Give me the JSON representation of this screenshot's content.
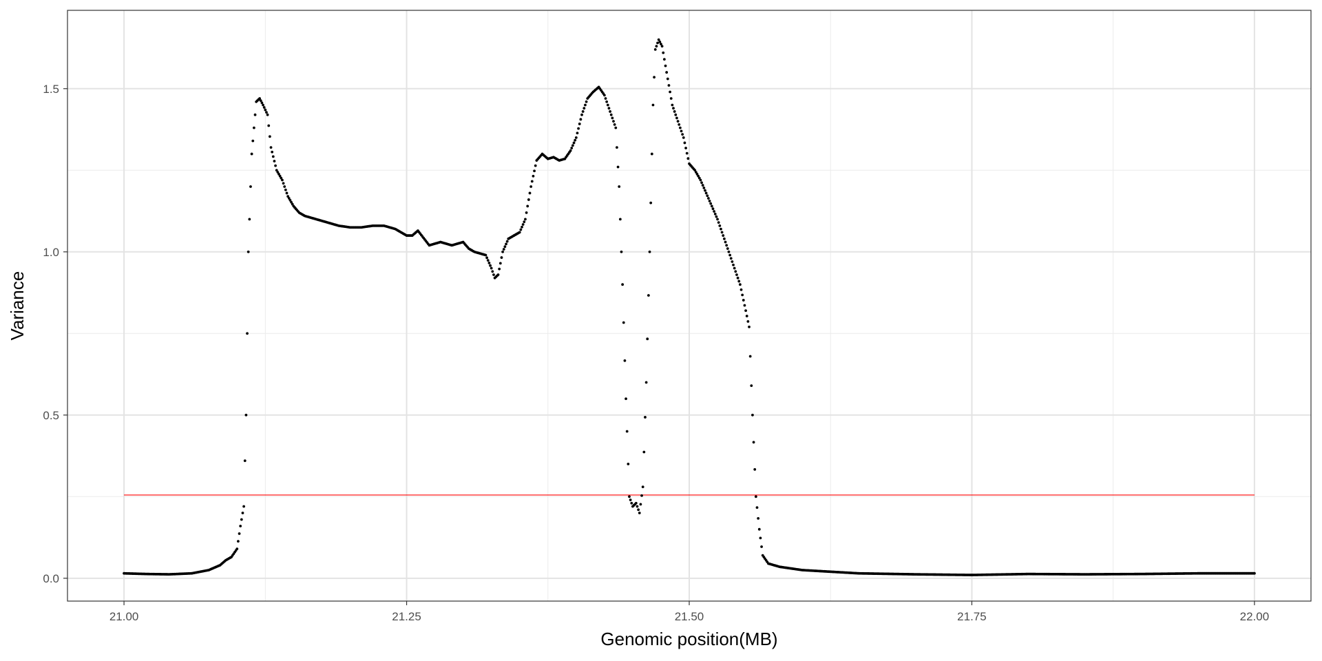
{
  "chart_data": {
    "type": "scatter",
    "xlabel": "Genomic position(MB)",
    "ylabel": "Variance",
    "xlim": [
      20.95,
      22.05
    ],
    "ylim": [
      -0.07,
      1.74
    ],
    "x_ticks": [
      21.0,
      21.25,
      21.5,
      21.75,
      22.0
    ],
    "x_tick_labels": [
      "21.00",
      "21.25",
      "21.50",
      "21.75",
      "22.00"
    ],
    "y_ticks": [
      0.0,
      0.5,
      1.0,
      1.5
    ],
    "y_tick_labels": [
      "0.0",
      "0.5",
      "1.0",
      "1.5"
    ],
    "grid": true,
    "threshold": {
      "y": 0.255,
      "x_start": 21.0,
      "x_end": 22.0,
      "color": "#ff0000"
    },
    "point_color": "#000000",
    "series": [
      {
        "points": [
          [
            21.0,
            0.015
          ],
          [
            21.02,
            0.013
          ],
          [
            21.04,
            0.012
          ],
          [
            21.06,
            0.015
          ],
          [
            21.075,
            0.025
          ],
          [
            21.085,
            0.04
          ],
          [
            21.09,
            0.055
          ],
          [
            21.095,
            0.065
          ],
          [
            21.1,
            0.09
          ],
          [
            21.103,
            0.16
          ],
          [
            21.106,
            0.22
          ],
          [
            21.108,
            0.5
          ],
          [
            21.11,
            1.0
          ],
          [
            21.113,
            1.3
          ],
          [
            21.117,
            1.46
          ],
          [
            21.12,
            1.47
          ],
          [
            21.123,
            1.45
          ],
          [
            21.127,
            1.42
          ],
          [
            21.13,
            1.32
          ],
          [
            21.135,
            1.25
          ],
          [
            21.14,
            1.22
          ],
          [
            21.145,
            1.17
          ],
          [
            21.15,
            1.14
          ],
          [
            21.155,
            1.12
          ],
          [
            21.16,
            1.11
          ],
          [
            21.17,
            1.1
          ],
          [
            21.18,
            1.09
          ],
          [
            21.19,
            1.08
          ],
          [
            21.2,
            1.075
          ],
          [
            21.21,
            1.075
          ],
          [
            21.22,
            1.08
          ],
          [
            21.23,
            1.08
          ],
          [
            21.24,
            1.07
          ],
          [
            21.25,
            1.05
          ],
          [
            21.255,
            1.05
          ],
          [
            21.26,
            1.065
          ],
          [
            21.27,
            1.02
          ],
          [
            21.28,
            1.03
          ],
          [
            21.29,
            1.02
          ],
          [
            21.3,
            1.03
          ],
          [
            21.305,
            1.01
          ],
          [
            21.31,
            1.0
          ],
          [
            21.315,
            0.995
          ],
          [
            21.32,
            0.99
          ],
          [
            21.325,
            0.95
          ],
          [
            21.328,
            0.92
          ],
          [
            21.331,
            0.93
          ],
          [
            21.335,
            1.0
          ],
          [
            21.34,
            1.04
          ],
          [
            21.345,
            1.05
          ],
          [
            21.35,
            1.06
          ],
          [
            21.355,
            1.1
          ],
          [
            21.36,
            1.2
          ],
          [
            21.365,
            1.28
          ],
          [
            21.37,
            1.3
          ],
          [
            21.375,
            1.285
          ],
          [
            21.38,
            1.29
          ],
          [
            21.385,
            1.28
          ],
          [
            21.39,
            1.285
          ],
          [
            21.395,
            1.31
          ],
          [
            21.4,
            1.35
          ],
          [
            21.405,
            1.42
          ],
          [
            21.41,
            1.47
          ],
          [
            21.415,
            1.49
          ],
          [
            21.42,
            1.505
          ],
          [
            21.425,
            1.48
          ],
          [
            21.43,
            1.43
          ],
          [
            21.435,
            1.38
          ],
          [
            21.438,
            1.2
          ],
          [
            21.441,
            0.9
          ],
          [
            21.444,
            0.55
          ],
          [
            21.447,
            0.25
          ],
          [
            21.45,
            0.22
          ],
          [
            21.453,
            0.23
          ],
          [
            21.456,
            0.2
          ],
          [
            21.459,
            0.28
          ],
          [
            21.462,
            0.6
          ],
          [
            21.465,
            1.0
          ],
          [
            21.468,
            1.45
          ],
          [
            21.47,
            1.62
          ],
          [
            21.473,
            1.65
          ],
          [
            21.476,
            1.63
          ],
          [
            21.48,
            1.55
          ],
          [
            21.485,
            1.45
          ],
          [
            21.49,
            1.4
          ],
          [
            21.495,
            1.35
          ],
          [
            21.5,
            1.27
          ],
          [
            21.505,
            1.25
          ],
          [
            21.51,
            1.22
          ],
          [
            21.515,
            1.18
          ],
          [
            21.52,
            1.14
          ],
          [
            21.525,
            1.1
          ],
          [
            21.53,
            1.05
          ],
          [
            21.535,
            1.0
          ],
          [
            21.54,
            0.95
          ],
          [
            21.545,
            0.9
          ],
          [
            21.55,
            0.82
          ],
          [
            21.553,
            0.77
          ],
          [
            21.556,
            0.5
          ],
          [
            21.559,
            0.25
          ],
          [
            21.562,
            0.15
          ],
          [
            21.565,
            0.07
          ],
          [
            21.57,
            0.045
          ],
          [
            21.58,
            0.035
          ],
          [
            21.6,
            0.025
          ],
          [
            21.65,
            0.015
          ],
          [
            21.7,
            0.012
          ],
          [
            21.75,
            0.01
          ],
          [
            21.8,
            0.013
          ],
          [
            21.85,
            0.012
          ],
          [
            21.9,
            0.013
          ],
          [
            21.95,
            0.015
          ],
          [
            22.0,
            0.015
          ]
        ]
      }
    ]
  }
}
